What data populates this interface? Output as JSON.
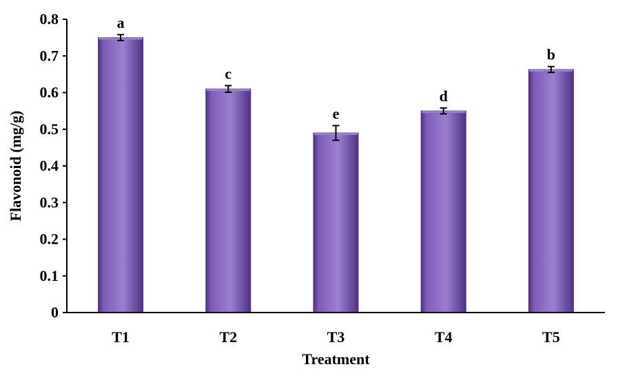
{
  "chart_data": {
    "type": "bar",
    "categories": [
      "T1",
      "T2",
      "T3",
      "T4",
      "T5"
    ],
    "values": [
      0.75,
      0.61,
      0.49,
      0.55,
      0.663
    ],
    "errors": [
      0.008,
      0.009,
      0.02,
      0.008,
      0.008
    ],
    "significance_letters": [
      "a",
      "c",
      "e",
      "d",
      "b"
    ],
    "title": "",
    "xlabel": "Treatment",
    "ylabel": "Flavonoid (mg/g)",
    "ylim": [
      0,
      0.8
    ],
    "yticks": [
      "0",
      "0.1",
      "0.2",
      "0.3",
      "0.4",
      "0.5",
      "0.6",
      "0.7",
      "0.8"
    ],
    "grid": false,
    "legend": "none",
    "bar_color": "#7e5cb8",
    "bar_color_dark": "#4f3284",
    "bar_color_light": "#9b7fd0"
  }
}
